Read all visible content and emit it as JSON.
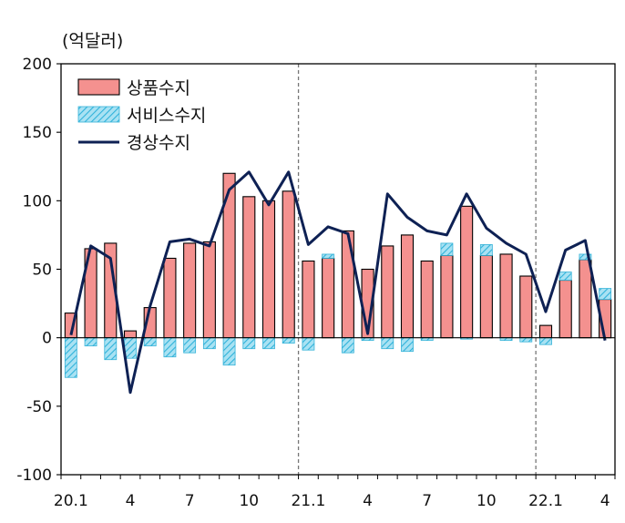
{
  "chart_data": {
    "type": "bar",
    "unit_label": "(억달러)",
    "ylim": [
      -100,
      200
    ],
    "yticks": [
      "200",
      "150",
      "100",
      "50",
      "0",
      "-50",
      "-100"
    ],
    "ytick_values": [
      200,
      150,
      100,
      50,
      0,
      -50,
      -100
    ],
    "x_tick_labels": [
      "20.1",
      "4",
      "7",
      "10",
      "21.1",
      "4",
      "7",
      "10",
      "22.1",
      "4"
    ],
    "x_tick_index": [
      0,
      3,
      6,
      9,
      12,
      15,
      18,
      21,
      24,
      27
    ],
    "divider_after_index": [
      11,
      23
    ],
    "legend_position": "top-left",
    "colors": {
      "goods": "#f4918f",
      "services": "#5fc8e6",
      "current": "#0e2154",
      "frame": "#000000",
      "divider": "#777777"
    },
    "series": [
      {
        "name": "상품수지",
        "kind": "bar",
        "values": [
          18,
          65,
          69,
          5,
          22,
          58,
          69,
          70,
          120,
          103,
          100,
          107,
          56,
          58,
          78,
          50,
          67,
          75,
          56,
          60,
          96,
          60,
          61,
          45,
          9,
          42,
          57,
          28
        ]
      },
      {
        "name": "서비스수지",
        "kind": "hatched-bar",
        "values": [
          -29,
          -6,
          -16,
          -15,
          -6,
          -14,
          -11,
          -8,
          -20,
          -8,
          -8,
          -4,
          -9,
          3,
          -11,
          -2,
          -8,
          -10,
          -2,
          9,
          -1,
          8,
          -2,
          -3,
          -5,
          6,
          4,
          8
        ]
      },
      {
        "name": "경상수지",
        "kind": "line",
        "values": [
          2,
          67,
          58,
          -40,
          23,
          70,
          72,
          67,
          108,
          121,
          97,
          121,
          68,
          81,
          76,
          3,
          105,
          88,
          78,
          75,
          105,
          80,
          69,
          61,
          19,
          64,
          71,
          -2
        ]
      }
    ]
  }
}
